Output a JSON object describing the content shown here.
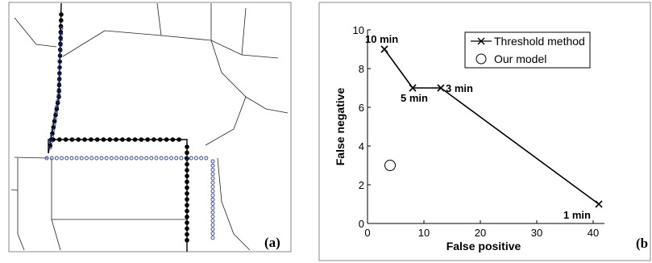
{
  "panels": {
    "left_label": "(a)",
    "right_label": "(b"
  },
  "chart_data": [
    {
      "type": "diagram",
      "description_free": true,
      "panel": "(a)"
    },
    {
      "type": "line",
      "panel": "(b",
      "xlabel": "False positive",
      "ylabel": "False negative",
      "xlim": [
        0,
        42
      ],
      "ylim": [
        0,
        10
      ],
      "xticks": [
        0,
        10,
        20,
        30,
        40
      ],
      "yticks": [
        0,
        2,
        4,
        6,
        8,
        10
      ],
      "grid": false,
      "legend_position": "top-right",
      "series": [
        {
          "name": "Threshold method",
          "marker": "x",
          "points": [
            {
              "x": 3,
              "y": 9,
              "label": "10 min"
            },
            {
              "x": 8,
              "y": 7,
              "label": "5 min"
            },
            {
              "x": 13,
              "y": 7,
              "label": "3 min"
            },
            {
              "x": 41,
              "y": 1,
              "label": "1 min"
            }
          ]
        },
        {
          "name": "Our model",
          "marker": "circle",
          "points": [
            {
              "x": 4,
              "y": 3
            }
          ]
        }
      ]
    }
  ]
}
